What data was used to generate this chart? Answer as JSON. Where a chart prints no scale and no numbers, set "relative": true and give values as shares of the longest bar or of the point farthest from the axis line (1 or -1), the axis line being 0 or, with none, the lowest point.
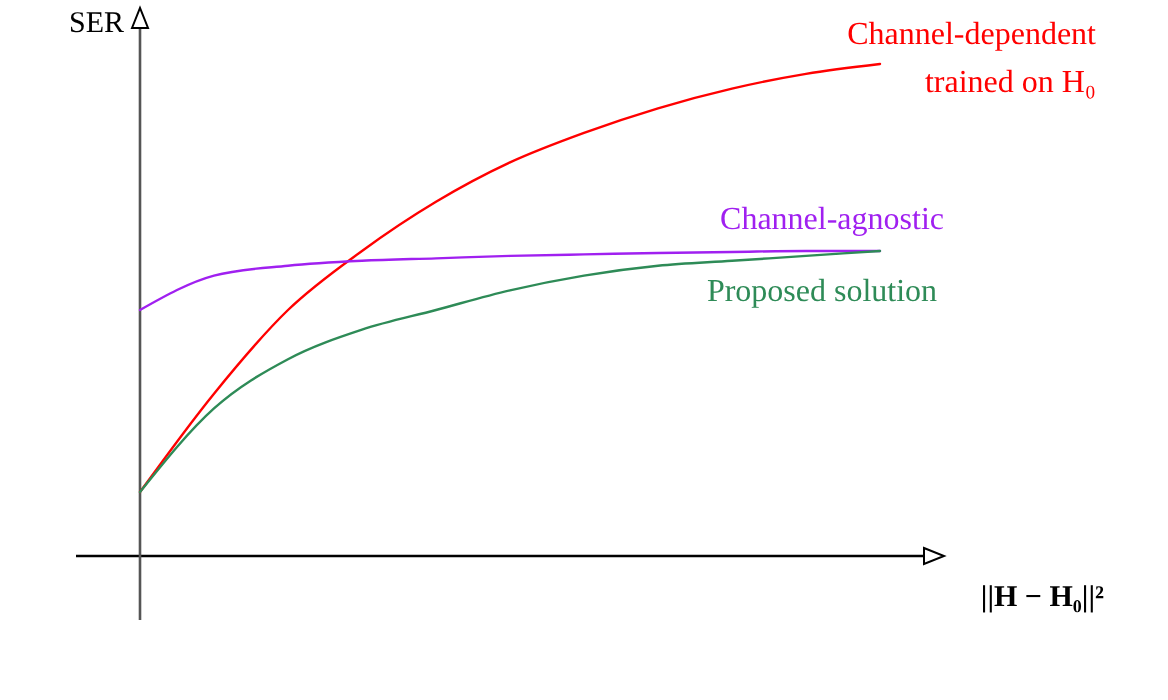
{
  "chart_data": {
    "type": "line",
    "relative": true,
    "ylabel": "SER",
    "xlabel": "||H − H₀||²",
    "categories": [
      null,
      null,
      null,
      null,
      null,
      null,
      null,
      null,
      null,
      null,
      null
    ],
    "marker": "none",
    "line_style": "solid",
    "series": [
      {
        "name": "Channel-dependent trained on H₀",
        "color": "#ff0000",
        "values": [
          0.13,
          0.33,
          0.5,
          0.62,
          0.72,
          0.8,
          0.86,
          0.91,
          0.95,
          0.98,
          1
        ]
      },
      {
        "name": "Channel-agnostic",
        "color": "#a020f0",
        "values": [
          0.5,
          0.57,
          0.59,
          0.6,
          0.605,
          0.61,
          0.613,
          0.616,
          0.618,
          0.62,
          0.62
        ]
      },
      {
        "name": "Proposed solution",
        "color": "#2e8b57",
        "values": [
          0.13,
          0.3,
          0.4,
          0.46,
          0.5,
          0.54,
          0.57,
          0.59,
          0.6,
          0.61,
          0.62
        ]
      }
    ]
  }
}
